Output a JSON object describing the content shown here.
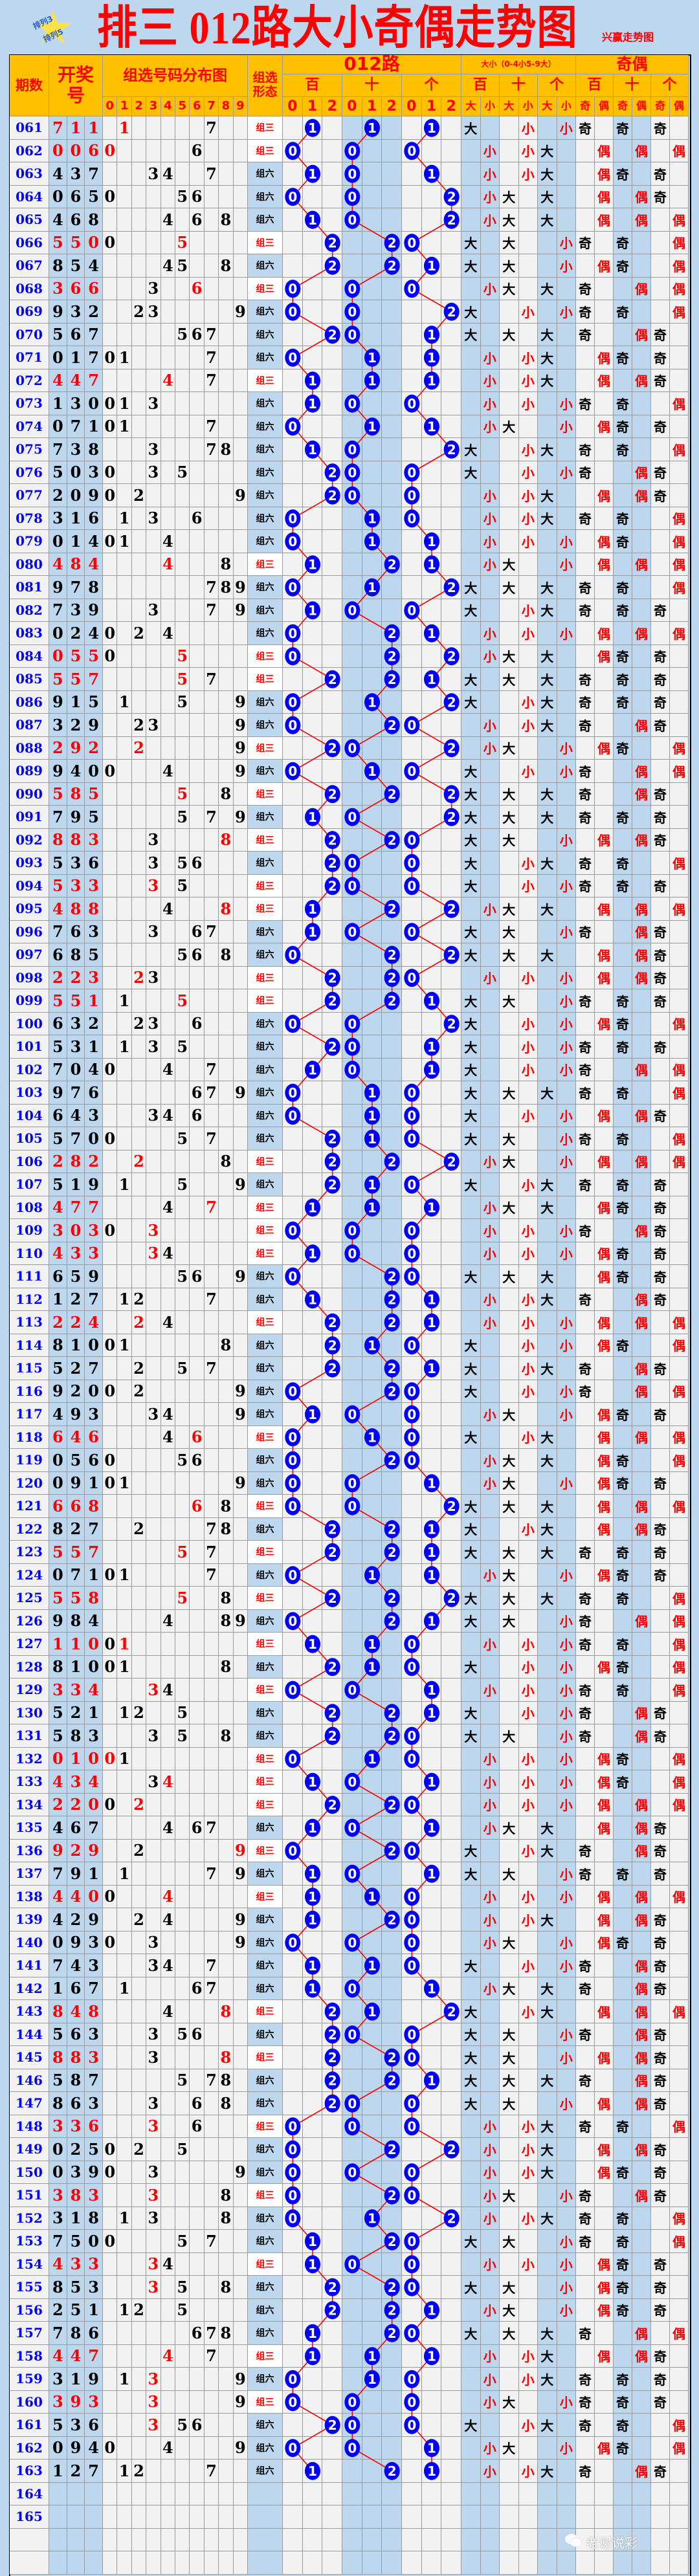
{
  "title": "排三 012路大小奇偶走势图",
  "brand": "兴赢走势图",
  "logo_text": [
    "排列3",
    "排列5"
  ],
  "watermark": "老谢说彩",
  "header": {
    "period": "期数",
    "draw": "开奖号",
    "dist": "组选号码分布图",
    "form": "组选形态",
    "route": "012路",
    "size": "大小（0-4小5-9大）",
    "parity": "奇偶",
    "pos": [
      "百",
      "十",
      "个"
    ],
    "digits": [
      "0",
      "1",
      "2",
      "3",
      "4",
      "5",
      "6",
      "7",
      "8",
      "9"
    ],
    "route_digits": [
      "0",
      "1",
      "2"
    ],
    "size_sub": [
      "大",
      "小"
    ],
    "parity_sub": [
      "奇",
      "偶"
    ]
  },
  "labels": {
    "big": "大",
    "small": "小",
    "odd": "奇",
    "even": "偶"
  },
  "colors": {
    "header_bg": "#ffc000",
    "page_bg": "#bdd7ee",
    "ball": "#0000ff",
    "line": "#ff0000",
    "highlight": "#ff0000",
    "period": "#0000ff"
  },
  "rows": [
    [
      "061",
      "711",
      "组三"
    ],
    [
      "062",
      "006",
      "组三"
    ],
    [
      "063",
      "437",
      "组六"
    ],
    [
      "064",
      "065",
      "组六"
    ],
    [
      "065",
      "468",
      "组六"
    ],
    [
      "066",
      "550",
      "组三"
    ],
    [
      "067",
      "854",
      "组六"
    ],
    [
      "068",
      "366",
      "组三"
    ],
    [
      "069",
      "932",
      "组六"
    ],
    [
      "070",
      "567",
      "组六"
    ],
    [
      "071",
      "017",
      "组六"
    ],
    [
      "072",
      "447",
      "组三"
    ],
    [
      "073",
      "130",
      "组六"
    ],
    [
      "074",
      "071",
      "组六"
    ],
    [
      "075",
      "738",
      "组六"
    ],
    [
      "076",
      "503",
      "组六"
    ],
    [
      "077",
      "209",
      "组六"
    ],
    [
      "078",
      "316",
      "组六"
    ],
    [
      "079",
      "014",
      "组六"
    ],
    [
      "080",
      "484",
      "组三"
    ],
    [
      "081",
      "978",
      "组六"
    ],
    [
      "082",
      "739",
      "组六"
    ],
    [
      "083",
      "024",
      "组六"
    ],
    [
      "084",
      "055",
      "组三"
    ],
    [
      "085",
      "557",
      "组三"
    ],
    [
      "086",
      "915",
      "组六"
    ],
    [
      "087",
      "329",
      "组六"
    ],
    [
      "088",
      "292",
      "组三"
    ],
    [
      "089",
      "940",
      "组六"
    ],
    [
      "090",
      "585",
      "组三"
    ],
    [
      "091",
      "795",
      "组六"
    ],
    [
      "092",
      "883",
      "组三"
    ],
    [
      "093",
      "536",
      "组六"
    ],
    [
      "094",
      "533",
      "组三"
    ],
    [
      "095",
      "488",
      "组三"
    ],
    [
      "096",
      "763",
      "组六"
    ],
    [
      "097",
      "685",
      "组六"
    ],
    [
      "098",
      "223",
      "组三"
    ],
    [
      "099",
      "551",
      "组三"
    ],
    [
      "100",
      "632",
      "组六"
    ],
    [
      "101",
      "531",
      "组六"
    ],
    [
      "102",
      "704",
      "组六"
    ],
    [
      "103",
      "976",
      "组六"
    ],
    [
      "104",
      "643",
      "组六"
    ],
    [
      "105",
      "570",
      "组六"
    ],
    [
      "106",
      "282",
      "组三"
    ],
    [
      "107",
      "519",
      "组六"
    ],
    [
      "108",
      "477",
      "组三"
    ],
    [
      "109",
      "303",
      "组三"
    ],
    [
      "110",
      "433",
      "组三"
    ],
    [
      "111",
      "659",
      "组六"
    ],
    [
      "112",
      "127",
      "组六"
    ],
    [
      "113",
      "224",
      "组三"
    ],
    [
      "114",
      "810",
      "组六"
    ],
    [
      "115",
      "527",
      "组六"
    ],
    [
      "116",
      "920",
      "组六"
    ],
    [
      "117",
      "493",
      "组六"
    ],
    [
      "118",
      "646",
      "组三"
    ],
    [
      "119",
      "056",
      "组六"
    ],
    [
      "120",
      "091",
      "组六"
    ],
    [
      "121",
      "668",
      "组三"
    ],
    [
      "122",
      "827",
      "组六"
    ],
    [
      "123",
      "557",
      "组三"
    ],
    [
      "124",
      "071",
      "组六"
    ],
    [
      "125",
      "558",
      "组三"
    ],
    [
      "126",
      "984",
      "组六"
    ],
    [
      "127",
      "110",
      "组三"
    ],
    [
      "128",
      "810",
      "组六"
    ],
    [
      "129",
      "334",
      "组三"
    ],
    [
      "130",
      "521",
      "组六"
    ],
    [
      "131",
      "583",
      "组六"
    ],
    [
      "132",
      "010",
      "组三"
    ],
    [
      "133",
      "434",
      "组三"
    ],
    [
      "134",
      "220",
      "组三"
    ],
    [
      "135",
      "467",
      "组六"
    ],
    [
      "136",
      "929",
      "组三"
    ],
    [
      "137",
      "791",
      "组六"
    ],
    [
      "138",
      "440",
      "组三"
    ],
    [
      "139",
      "429",
      "组六"
    ],
    [
      "140",
      "093",
      "组六"
    ],
    [
      "141",
      "743",
      "组六"
    ],
    [
      "142",
      "167",
      "组六"
    ],
    [
      "143",
      "848",
      "组三"
    ],
    [
      "144",
      "563",
      "组六"
    ],
    [
      "145",
      "883",
      "组三"
    ],
    [
      "146",
      "587",
      "组六"
    ],
    [
      "147",
      "863",
      "组六"
    ],
    [
      "148",
      "336",
      "组三"
    ],
    [
      "149",
      "025",
      "组六"
    ],
    [
      "150",
      "039",
      "组六"
    ],
    [
      "151",
      "383",
      "组三"
    ],
    [
      "152",
      "318",
      "组六"
    ],
    [
      "153",
      "750",
      "组六"
    ],
    [
      "154",
      "433",
      "组三"
    ],
    [
      "155",
      "853",
      "组六"
    ],
    [
      "156",
      "251",
      "组六"
    ],
    [
      "157",
      "786",
      "组六"
    ],
    [
      "158",
      "447",
      "组三"
    ],
    [
      "159",
      "319",
      "组六"
    ],
    [
      "160",
      "393",
      "组三"
    ],
    [
      "161",
      "536",
      "组六"
    ],
    [
      "162",
      "094",
      "组六"
    ],
    [
      "163",
      "127",
      "组六"
    ]
  ],
  "empty_periods": [
    "164",
    "165"
  ],
  "red_digits_extra": {
    "155": "3",
    "159": "3",
    "161": "3"
  }
}
